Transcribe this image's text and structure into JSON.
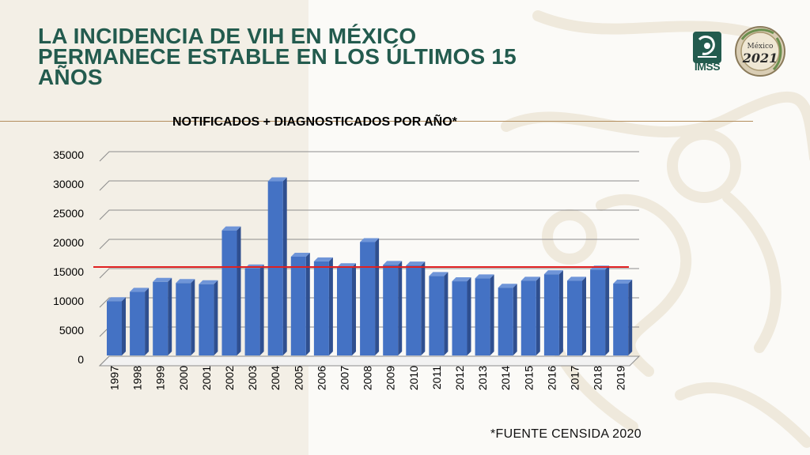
{
  "slide": {
    "title_lines": [
      "LA INCIDENCIA DE VIH EN MÉXICO",
      "PERMANECE ESTABLE EN LOS ÚLTIMOS 15",
      "AÑOS"
    ],
    "source_note": "*FUENTE CENSIDA 2020"
  },
  "logos": {
    "imss_text": "IMSS",
    "seal_top": "México",
    "seal_year": "2021"
  },
  "colors": {
    "title_green": "#235b4e",
    "rule_gold": "#b38e5d",
    "bar_blue": "#4472c4",
    "reference_red": "#e02020"
  },
  "chart_data": {
    "type": "bar",
    "title": "NOTIFICADOS + DIAGNOSTICADOS POR AÑO*",
    "categories": [
      "1997",
      "1998",
      "1999",
      "2000",
      "2001",
      "2002",
      "2003",
      "2004",
      "2005",
      "2006",
      "2007",
      "2008",
      "2009",
      "2010",
      "2011",
      "2012",
      "2013",
      "2014",
      "2015",
      "2016",
      "2017",
      "2018",
      "2019"
    ],
    "values": [
      9700,
      11300,
      13000,
      12800,
      12600,
      21800,
      15300,
      30200,
      17300,
      16500,
      15500,
      19800,
      15900,
      15800,
      14000,
      13100,
      13600,
      12000,
      13200,
      14300,
      13200,
      15100,
      12700
    ],
    "y_ticks": [
      "0",
      "5000",
      "10000",
      "15000",
      "20000",
      "25000",
      "30000",
      "35000"
    ],
    "ylim": [
      0,
      35000
    ],
    "reference_line": 15000,
    "grid": true,
    "legend": "none"
  }
}
